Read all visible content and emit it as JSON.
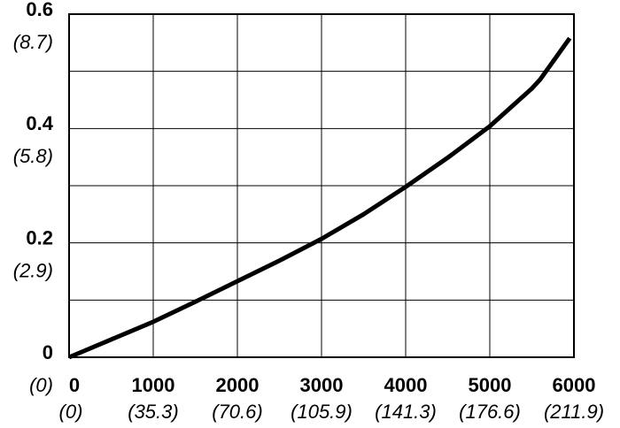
{
  "chart_data": {
    "type": "line",
    "x": [
      0,
      1000,
      1500,
      2000,
      2500,
      3000,
      3500,
      4000,
      4500,
      5000,
      5500,
      5600,
      5950
    ],
    "series": [
      {
        "color": "#000000",
        "values": [
          0,
          0.062,
          0.097,
          0.133,
          0.169,
          0.207,
          0.25,
          0.298,
          0.349,
          0.404,
          0.47,
          0.486,
          0.558
        ]
      }
    ],
    "xlim": [
      0,
      6000
    ],
    "ylim": [
      0,
      0.6
    ],
    "xticks": [
      0,
      1000,
      2000,
      3000,
      4000,
      5000,
      6000
    ],
    "yticks": [
      0,
      0.2,
      0.4,
      0.6
    ],
    "yminorticks": [
      0.1,
      0.3,
      0.5
    ],
    "xticks2": [
      {
        "value": 0,
        "label": "(0)"
      },
      {
        "value": 1000,
        "label": "(35.3)"
      },
      {
        "value": 2000,
        "label": "(70.6)"
      },
      {
        "value": 3000,
        "label": "(105.9)"
      },
      {
        "value": 4000,
        "label": "(141.3)"
      },
      {
        "value": 5000,
        "label": "(176.6)"
      },
      {
        "value": 6000,
        "label": "(211.9)"
      }
    ],
    "yticks2": [
      {
        "value": 0,
        "label": "(0)"
      },
      {
        "value": 0.2,
        "label": "(2.9)"
      },
      {
        "value": 0.4,
        "label": "(5.8)"
      },
      {
        "value": 0.6,
        "label": "(8.7)"
      }
    ],
    "grid": true
  }
}
